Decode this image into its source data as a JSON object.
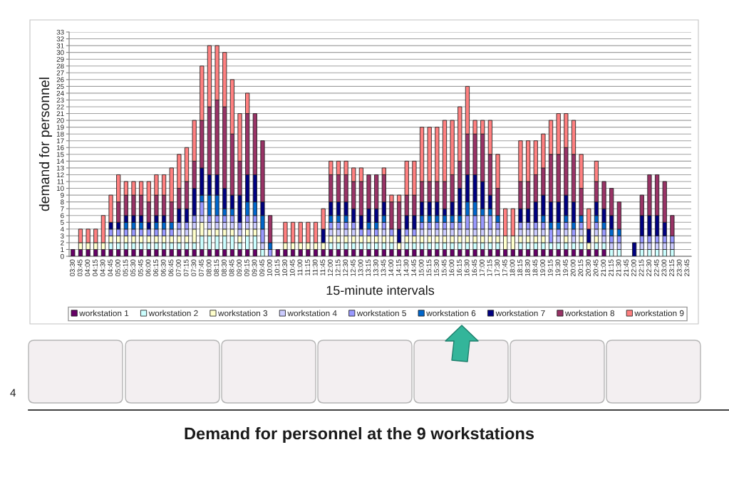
{
  "chart_data": {
    "type": "bar",
    "title": "Demand for personnel at the 9 workstations",
    "xlabel": "15-minute intervals",
    "ylabel": "demand for personnel",
    "stacked": true,
    "grid": "y",
    "legend": "bottom",
    "annotations": [
      "4"
    ],
    "ylim": [
      0,
      33
    ],
    "yticks": [
      0,
      1,
      2,
      3,
      4,
      5,
      6,
      7,
      8,
      9,
      10,
      11,
      12,
      13,
      14,
      15,
      16,
      17,
      18,
      19,
      20,
      21,
      22,
      23,
      24,
      25,
      26,
      27,
      28,
      29,
      30,
      31,
      32,
      33
    ],
    "categories": [
      "03:30",
      "03:45",
      "04:00",
      "04:15",
      "04:30",
      "04:45",
      "05:00",
      "05:15",
      "05:30",
      "05:45",
      "06:00",
      "06:15",
      "06:30",
      "06:45",
      "07:00",
      "07:15",
      "07:30",
      "07:45",
      "08:00",
      "08:15",
      "08:30",
      "08:45",
      "09:00",
      "09:15",
      "09:30",
      "09:45",
      "10:00",
      "10:15",
      "10:30",
      "10:45",
      "11:00",
      "11:15",
      "11:30",
      "11:45",
      "12:00",
      "12:15",
      "12:30",
      "12:45",
      "13:00",
      "13:15",
      "13:30",
      "13:45",
      "14:00",
      "14:15",
      "14:30",
      "14:45",
      "15:00",
      "15:15",
      "15:30",
      "15:45",
      "16:00",
      "16:15",
      "16:30",
      "16:45",
      "17:00",
      "17:15",
      "17:30",
      "17:45",
      "18:00",
      "18:15",
      "18:30",
      "18:45",
      "19:00",
      "19:15",
      "19:30",
      "19:45",
      "20:00",
      "20:15",
      "20:30",
      "20:45",
      "21:00",
      "21:15",
      "21:30",
      "21:45",
      "22:00",
      "22:15",
      "22:30",
      "22:45",
      "23:00",
      "23:15",
      "23:30",
      "23:45"
    ],
    "series": [
      {
        "name": "workstation 1",
        "color": "#660066",
        "values": [
          1,
          1,
          1,
          1,
          1,
          1,
          1,
          1,
          1,
          1,
          1,
          1,
          1,
          1,
          1,
          1,
          1,
          1,
          1,
          1,
          1,
          1,
          1,
          1,
          1,
          null,
          null,
          1,
          1,
          1,
          1,
          1,
          1,
          1,
          1,
          1,
          1,
          1,
          1,
          1,
          1,
          1,
          1,
          1,
          1,
          1,
          1,
          1,
          1,
          1,
          1,
          1,
          1,
          1,
          1,
          1,
          1,
          1,
          1,
          1,
          1,
          1,
          1,
          1,
          1,
          1,
          1,
          1,
          1,
          1,
          1,
          null,
          null,
          null,
          null,
          null,
          null,
          null,
          null,
          null,
          null,
          null
        ]
      },
      {
        "name": "workstation 2",
        "color": "#ccffff",
        "values": [
          null,
          null,
          null,
          null,
          null,
          1,
          1,
          1,
          1,
          1,
          1,
          1,
          1,
          1,
          1,
          1,
          1,
          2,
          2,
          2,
          2,
          2,
          1,
          2,
          2,
          1,
          null,
          null,
          null,
          null,
          null,
          null,
          null,
          null,
          1,
          1,
          1,
          1,
          1,
          1,
          1,
          1,
          1,
          null,
          1,
          1,
          1,
          1,
          1,
          1,
          1,
          1,
          1,
          1,
          1,
          1,
          1,
          null,
          null,
          1,
          1,
          1,
          1,
          1,
          1,
          1,
          1,
          1,
          null,
          1,
          1,
          1,
          1,
          null,
          null,
          1,
          1,
          1,
          1,
          1,
          null,
          null
        ]
      },
      {
        "name": "workstation 3",
        "color": "#ffffcc",
        "values": [
          null,
          1,
          1,
          1,
          1,
          1,
          1,
          1,
          1,
          1,
          1,
          1,
          1,
          1,
          1,
          1,
          2,
          2,
          1,
          1,
          1,
          1,
          1,
          1,
          1,
          null,
          null,
          null,
          1,
          1,
          1,
          1,
          1,
          1,
          1,
          1,
          1,
          1,
          1,
          1,
          1,
          1,
          1,
          1,
          1,
          1,
          1,
          1,
          1,
          1,
          1,
          1,
          1,
          1,
          1,
          1,
          1,
          2,
          2,
          1,
          1,
          1,
          1,
          null,
          null,
          1,
          null,
          1,
          1,
          1,
          null,
          null,
          null,
          null,
          null,
          null,
          null,
          null,
          null,
          null,
          null,
          null
        ]
      },
      {
        "name": "workstation 4",
        "color": "#ccccff",
        "values": [
          null,
          null,
          null,
          null,
          null,
          null,
          null,
          null,
          null,
          null,
          null,
          null,
          null,
          null,
          1,
          1,
          1,
          1,
          1,
          1,
          1,
          1,
          1,
          1,
          1,
          1,
          null,
          null,
          null,
          null,
          null,
          null,
          null,
          null,
          1,
          1,
          1,
          1,
          null,
          null,
          null,
          1,
          null,
          null,
          null,
          null,
          1,
          1,
          1,
          1,
          1,
          1,
          1,
          1,
          1,
          1,
          1,
          null,
          null,
          1,
          1,
          1,
          1,
          null,
          1,
          1,
          1,
          1,
          null,
          1,
          1,
          1,
          1,
          null,
          null,
          1,
          1,
          1,
          1,
          1,
          null,
          null
        ]
      },
      {
        "name": "workstation 5",
        "color": "#9999ff",
        "values": [
          null,
          null,
          null,
          null,
          null,
          1,
          1,
          1,
          1,
          1,
          1,
          1,
          1,
          1,
          1,
          1,
          1,
          2,
          1,
          1,
          1,
          1,
          1,
          1,
          1,
          2,
          1,
          null,
          null,
          null,
          null,
          null,
          null,
          null,
          1,
          1,
          1,
          1,
          1,
          1,
          1,
          1,
          1,
          null,
          1,
          1,
          1,
          1,
          1,
          1,
          1,
          1,
          2,
          2,
          2,
          2,
          1,
          null,
          null,
          1,
          1,
          1,
          1,
          2,
          1,
          1,
          1,
          1,
          null,
          1,
          1,
          1,
          1,
          null,
          null,
          1,
          1,
          1,
          1,
          1,
          null,
          null
        ]
      },
      {
        "name": "workstation 6",
        "color": "#0066cc",
        "values": [
          null,
          null,
          null,
          null,
          null,
          null,
          null,
          1,
          1,
          1,
          null,
          1,
          1,
          1,
          null,
          null,
          null,
          1,
          3,
          3,
          1,
          1,
          null,
          2,
          2,
          2,
          1,
          null,
          null,
          null,
          null,
          null,
          null,
          null,
          1,
          1,
          1,
          null,
          null,
          1,
          1,
          1,
          null,
          null,
          null,
          null,
          1,
          1,
          1,
          1,
          1,
          1,
          2,
          2,
          1,
          1,
          1,
          null,
          null,
          null,
          null,
          null,
          1,
          1,
          1,
          1,
          1,
          1,
          null,
          1,
          1,
          1,
          1,
          null,
          null,
          null,
          null,
          null,
          null,
          null,
          null,
          null
        ]
      },
      {
        "name": "workstation 7",
        "color": "#000080",
        "values": [
          null,
          null,
          null,
          null,
          null,
          1,
          1,
          1,
          1,
          1,
          1,
          1,
          1,
          null,
          2,
          2,
          4,
          4,
          3,
          3,
          3,
          2,
          4,
          4,
          4,
          2,
          null,
          null,
          null,
          null,
          null,
          null,
          null,
          2,
          2,
          2,
          2,
          2,
          2,
          2,
          2,
          2,
          null,
          2,
          2,
          2,
          2,
          2,
          2,
          1,
          2,
          4,
          4,
          4,
          4,
          2,
          null,
          null,
          null,
          2,
          2,
          3,
          3,
          3,
          3,
          3,
          3,
          null,
          2,
          2,
          2,
          2,
          null,
          null,
          2,
          3,
          3,
          3,
          2,
          null,
          null,
          null
        ]
      },
      {
        "name": "workstation 8",
        "color": "#993366",
        "values": [
          null,
          null,
          null,
          null,
          null,
          null,
          3,
          3,
          3,
          3,
          3,
          3,
          3,
          3,
          3,
          4,
          4,
          7,
          10,
          11,
          12,
          9,
          5,
          9,
          9,
          9,
          4,
          null,
          null,
          null,
          null,
          null,
          null,
          null,
          4,
          4,
          4,
          4,
          5,
          5,
          5,
          4,
          4,
          4,
          3,
          3,
          3,
          3,
          3,
          4,
          4,
          4,
          6,
          6,
          7,
          6,
          4,
          null,
          null,
          4,
          4,
          4,
          4,
          7,
          7,
          7,
          7,
          4,
          null,
          3,
          4,
          4,
          4,
          null,
          null,
          3,
          6,
          6,
          6,
          3,
          null,
          null
        ]
      },
      {
        "name": "workstation 9",
        "color": "#ff8080",
        "values": [
          null,
          2,
          2,
          2,
          4,
          4,
          4,
          2,
          2,
          2,
          3,
          3,
          3,
          5,
          5,
          5,
          6,
          8,
          9,
          8,
          8,
          8,
          7,
          3,
          null,
          null,
          null,
          null,
          3,
          3,
          3,
          3,
          3,
          3,
          2,
          2,
          2,
          2,
          2,
          null,
          null,
          1,
          1,
          1,
          5,
          5,
          8,
          8,
          8,
          9,
          8,
          8,
          7,
          2,
          2,
          5,
          5,
          4,
          4,
          6,
          6,
          5,
          5,
          5,
          6,
          5,
          5,
          5,
          3,
          3,
          null,
          null,
          null,
          null,
          null,
          null,
          null,
          null,
          null,
          null,
          null,
          null
        ]
      }
    ]
  }
}
